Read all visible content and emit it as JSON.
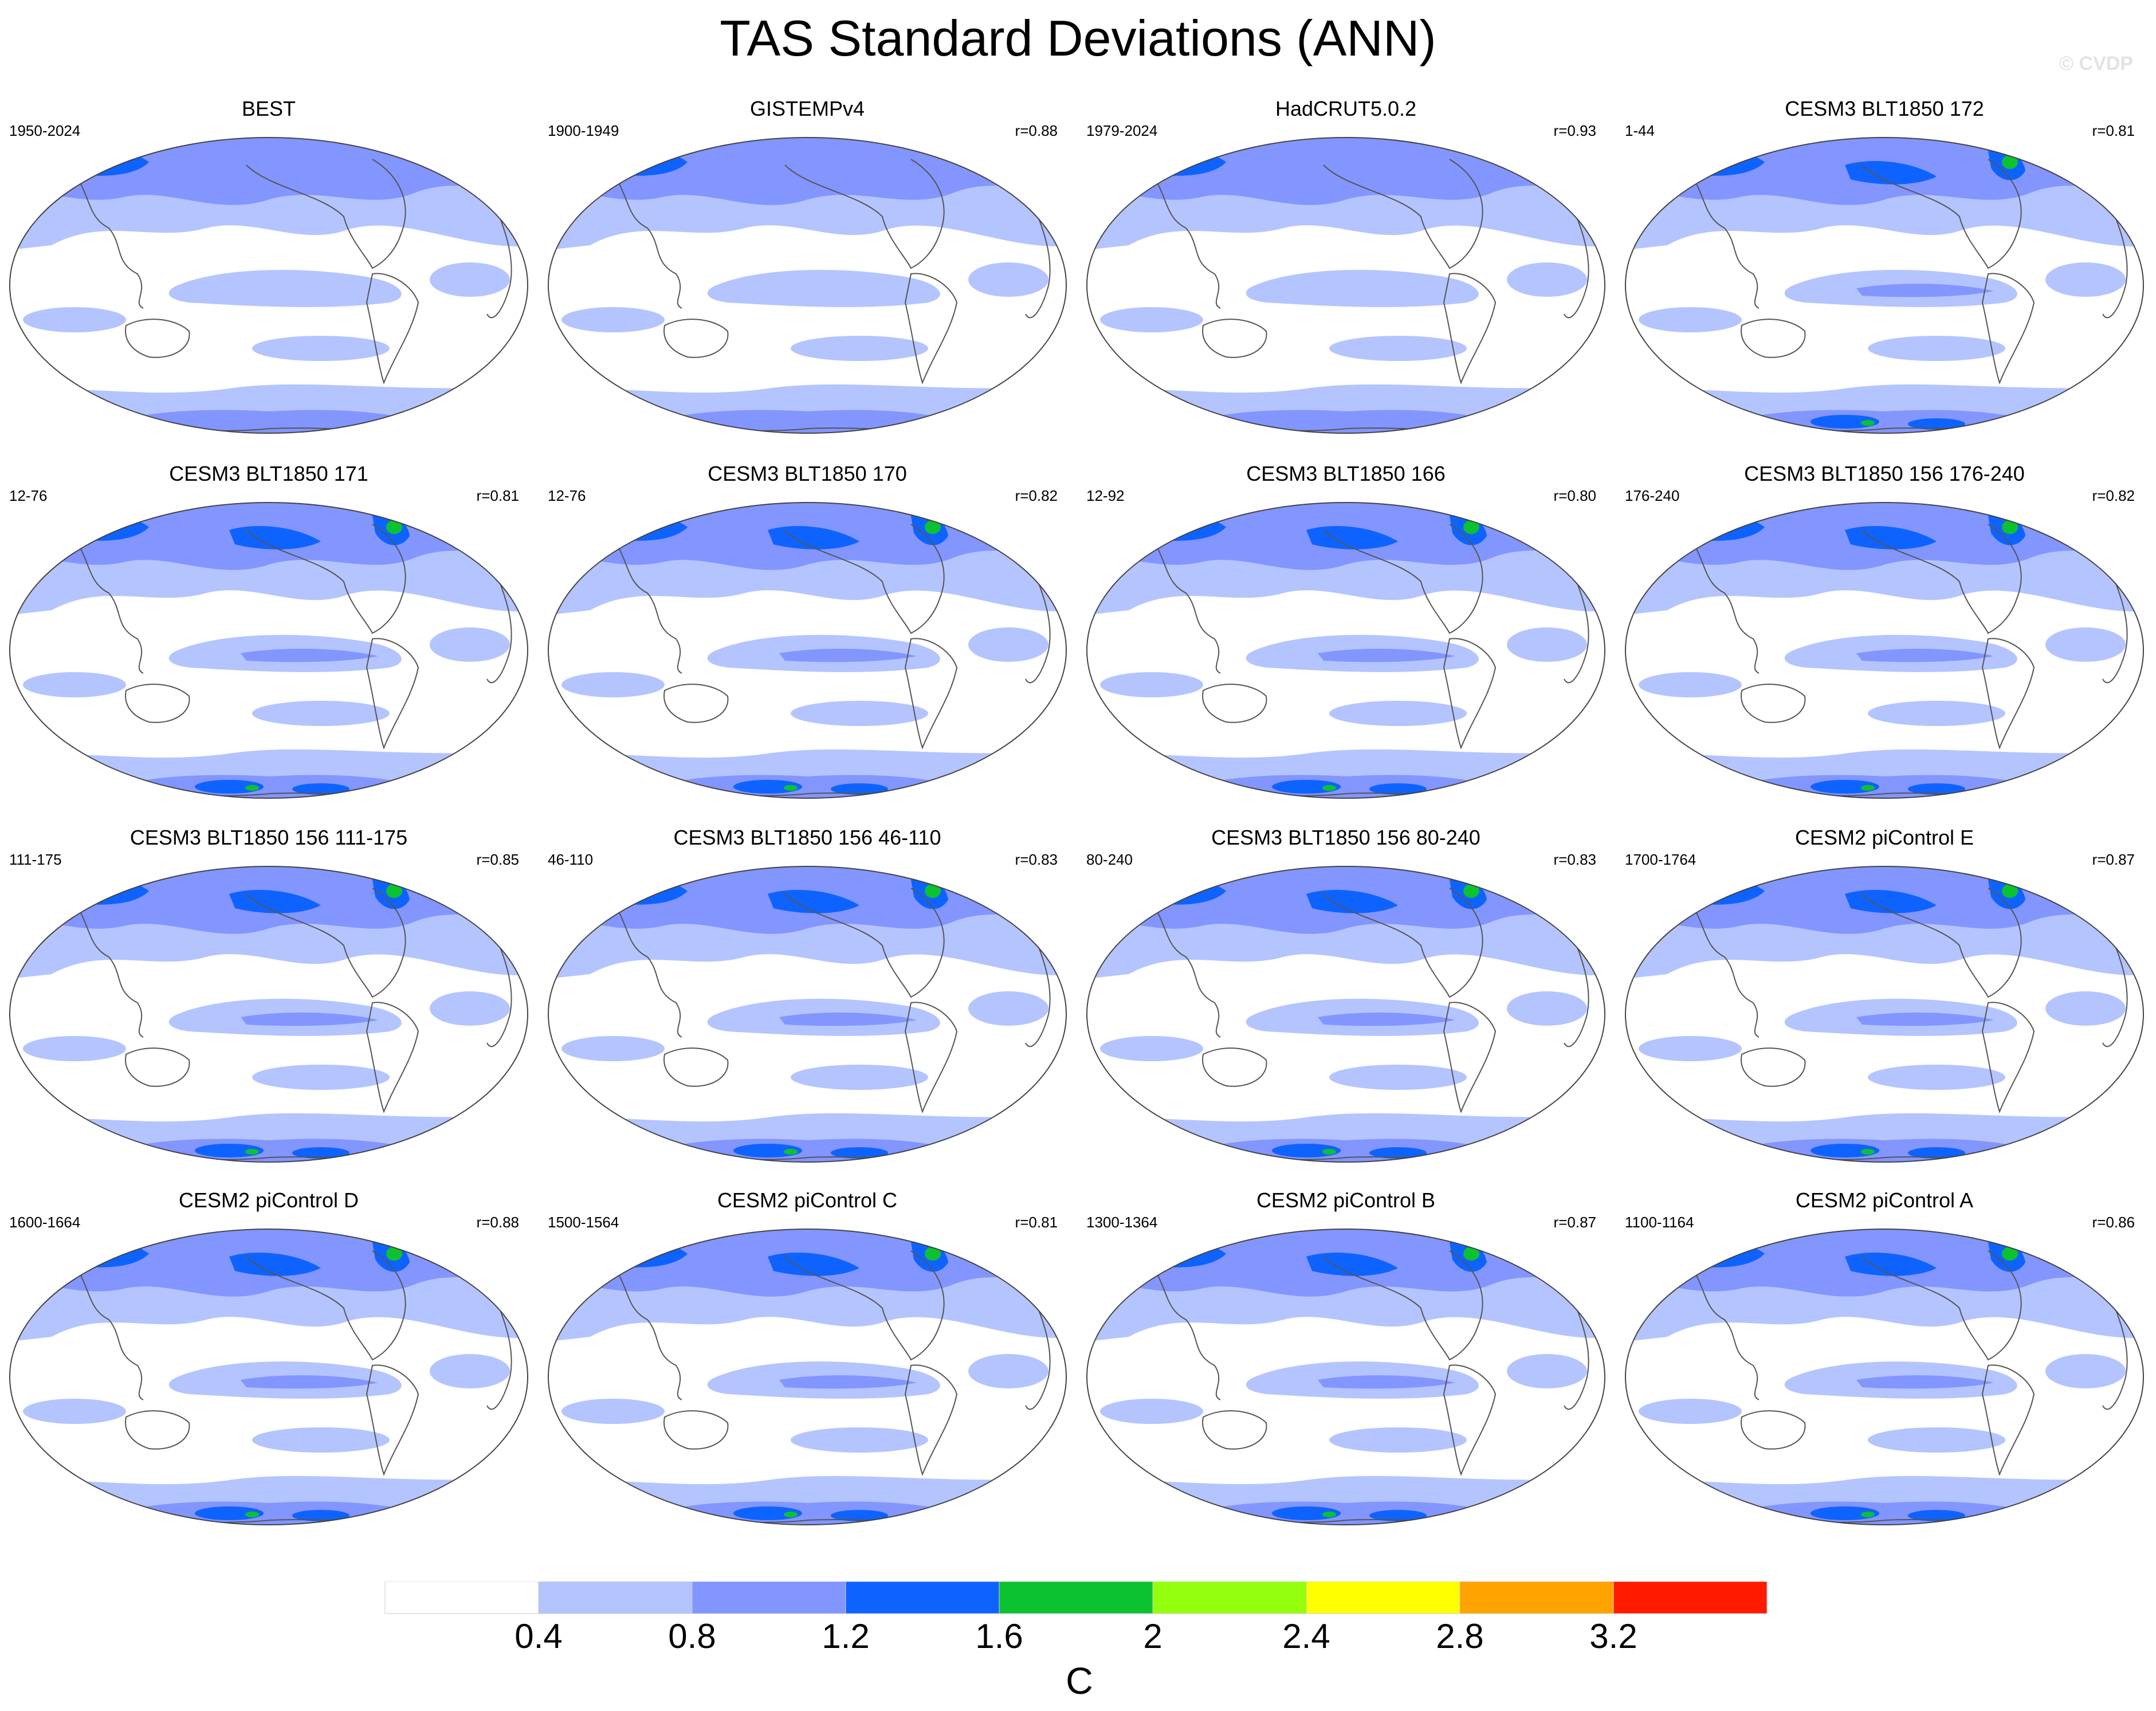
{
  "title": "TAS Standard Deviations (ANN)",
  "watermark": "© CVDP",
  "colors": {
    "land_outline": "#555555",
    "map_border": "#444444",
    "levels": [
      "#ffffff",
      "#b4c4ff",
      "#8395ff",
      "#0e63ff",
      "#0cc231",
      "#93ff0c",
      "#ffff00",
      "#ffa300",
      "#ff1a00"
    ]
  },
  "panels": [
    {
      "title": "BEST",
      "period": "1950-2024",
      "r": "",
      "icon": "robinson-world-map"
    },
    {
      "title": "GISTEMPv4",
      "period": "1900-1949",
      "r": "r=0.88",
      "icon": "robinson-world-map"
    },
    {
      "title": "HadCRUT5.0.2",
      "period": "1979-2024",
      "r": "r=0.93",
      "icon": "robinson-world-map"
    },
    {
      "title": "CESM3 BLT1850 172",
      "period": "1-44",
      "r": "r=0.81",
      "icon": "robinson-world-map"
    },
    {
      "title": "CESM3 BLT1850 171",
      "period": "12-76",
      "r": "r=0.81",
      "icon": "robinson-world-map"
    },
    {
      "title": "CESM3 BLT1850 170",
      "period": "12-76",
      "r": "r=0.82",
      "icon": "robinson-world-map"
    },
    {
      "title": "CESM3 BLT1850 166",
      "period": "12-92",
      "r": "r=0.80",
      "icon": "robinson-world-map"
    },
    {
      "title": "CESM3 BLT1850 156 176-240",
      "period": "176-240",
      "r": "r=0.82",
      "icon": "robinson-world-map"
    },
    {
      "title": "CESM3 BLT1850 156 111-175",
      "period": "111-175",
      "r": "r=0.85",
      "icon": "robinson-world-map"
    },
    {
      "title": "CESM3 BLT1850 156 46-110",
      "period": "46-110",
      "r": "r=0.83",
      "icon": "robinson-world-map"
    },
    {
      "title": "CESM3 BLT1850 156 80-240",
      "period": "80-240",
      "r": "r=0.83",
      "icon": "robinson-world-map"
    },
    {
      "title": "CESM2 piControl E",
      "period": "1700-1764",
      "r": "r=0.87",
      "icon": "robinson-world-map"
    },
    {
      "title": "CESM2 piControl D",
      "period": "1600-1664",
      "r": "r=0.88",
      "icon": "robinson-world-map"
    },
    {
      "title": "CESM2 piControl C",
      "period": "1500-1564",
      "r": "r=0.81",
      "icon": "robinson-world-map"
    },
    {
      "title": "CESM2 piControl B",
      "period": "1300-1364",
      "r": "r=0.87",
      "icon": "robinson-world-map"
    },
    {
      "title": "CESM2 piControl A",
      "period": "1100-1164",
      "r": "r=0.86",
      "icon": "robinson-world-map"
    }
  ],
  "colorbar": {
    "ticks": [
      "0.4",
      "0.8",
      "1.2",
      "1.6",
      "2",
      "2.4",
      "2.8",
      "3.2"
    ],
    "unit": "C"
  }
}
